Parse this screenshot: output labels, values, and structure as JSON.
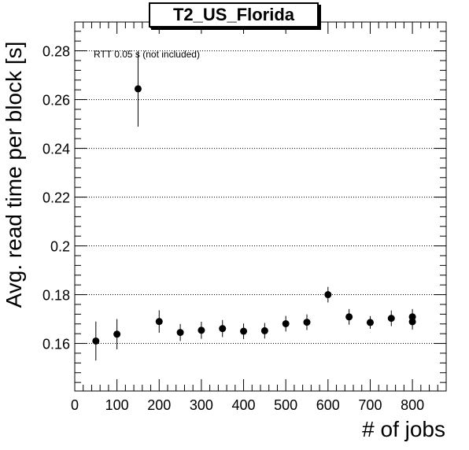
{
  "chart_data": {
    "type": "scatter",
    "title": "T2_US_Florida",
    "xlabel": "# of jobs",
    "ylabel": "Avg. read time per block [s]",
    "annotation": "RTT 0.05 s (not included)",
    "xlim": [
      0,
      880
    ],
    "ylim": [
      0.1405,
      0.2918
    ],
    "xticks": [
      0,
      100,
      200,
      300,
      400,
      500,
      600,
      700,
      800
    ],
    "yticks": [
      0.16,
      0.18,
      0.2,
      0.22,
      0.24,
      0.26,
      0.28
    ],
    "ytick_labels": [
      "0.16",
      "0.18",
      "0.2",
      "0.22",
      "0.24",
      "0.26",
      "0.28"
    ],
    "grid": "horizontal dotted",
    "marker_color": "#000000",
    "points": [
      {
        "x": 50,
        "y": 0.161,
        "err": 0.008
      },
      {
        "x": 100,
        "y": 0.1638,
        "err": 0.0062
      },
      {
        "x": 150,
        "y": 0.2644,
        "err": 0.0155
      },
      {
        "x": 200,
        "y": 0.169,
        "err": 0.0046
      },
      {
        "x": 250,
        "y": 0.1645,
        "err": 0.0035
      },
      {
        "x": 300,
        "y": 0.1654,
        "err": 0.0035
      },
      {
        "x": 350,
        "y": 0.1661,
        "err": 0.0035
      },
      {
        "x": 400,
        "y": 0.165,
        "err": 0.0032
      },
      {
        "x": 450,
        "y": 0.1652,
        "err": 0.0032
      },
      {
        "x": 500,
        "y": 0.1681,
        "err": 0.0032
      },
      {
        "x": 550,
        "y": 0.1687,
        "err": 0.0032
      },
      {
        "x": 600,
        "y": 0.18,
        "err": 0.0032
      },
      {
        "x": 650,
        "y": 0.1709,
        "err": 0.0032
      },
      {
        "x": 700,
        "y": 0.1686,
        "err": 0.0026
      },
      {
        "x": 750,
        "y": 0.1703,
        "err": 0.0032
      },
      {
        "x": 800,
        "y": 0.1709,
        "err": 0.0032
      },
      {
        "x": 800,
        "y": 0.1689,
        "err": 0.0032
      }
    ]
  }
}
